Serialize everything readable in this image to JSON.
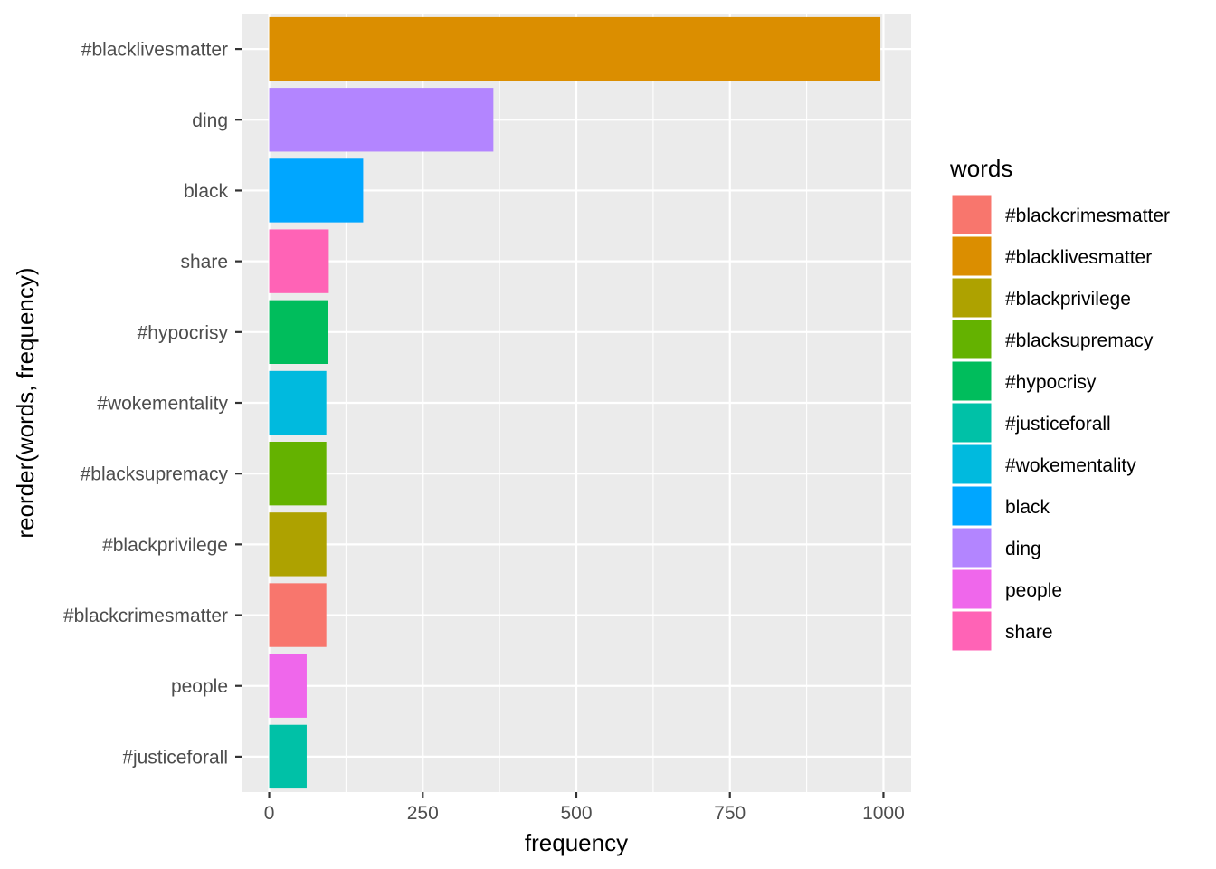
{
  "chart_data": {
    "type": "bar",
    "orientation": "horizontal",
    "xlabel": "frequency",
    "ylabel": "reorder(words, frequency)",
    "xlim": [
      -45,
      1045
    ],
    "x_ticks": [
      0,
      250,
      500,
      750,
      1000
    ],
    "x_tick_labels": [
      "0",
      "250",
      "500",
      "750",
      "1000"
    ],
    "grid": true,
    "legend_position": "right",
    "legend_title": "words",
    "categories": [
      "#blacklivesmatter",
      "ding",
      "black",
      "share",
      "#hypocrisy",
      "#wokementality",
      "#blacksupremacy",
      "#blackprivilege",
      "#blackcrimesmatter",
      "people",
      "#justiceforall"
    ],
    "values": [
      995,
      365,
      153,
      97,
      96,
      93,
      93,
      93,
      93,
      61,
      61
    ],
    "colors": {
      "#blackcrimesmatter": "#F8766D",
      "#blacklivesmatter": "#DB8E00",
      "#blackprivilege": "#AEA200",
      "#blacksupremacy": "#64B200",
      "#hypocrisy": "#00BD5C",
      "#justiceforall": "#00C1A7",
      "#wokementality": "#00BADE",
      "black": "#00A6FF",
      "ding": "#B385FF",
      "people": "#EF67EB",
      "share": "#FF63B6"
    },
    "legend_entries": [
      "#blackcrimesmatter",
      "#blacklivesmatter",
      "#blackprivilege",
      "#blacksupremacy",
      "#hypocrisy",
      "#justiceforall",
      "#wokementality",
      "black",
      "ding",
      "people",
      "share"
    ]
  }
}
